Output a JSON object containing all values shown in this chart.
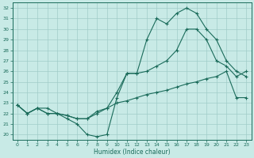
{
  "xlabel": "Humidex (Indice chaleur)",
  "bg_color": "#c8eae6",
  "grid_color": "#a0ccc8",
  "line_color": "#1a6b5a",
  "xlim": [
    -0.5,
    23.5
  ],
  "ylim": [
    19.5,
    32.5
  ],
  "yticks": [
    20,
    21,
    22,
    23,
    24,
    25,
    26,
    27,
    28,
    29,
    30,
    31,
    32
  ],
  "xticks": [
    0,
    1,
    2,
    3,
    4,
    5,
    6,
    7,
    8,
    9,
    10,
    11,
    12,
    13,
    14,
    15,
    16,
    17,
    18,
    19,
    20,
    21,
    22,
    23
  ],
  "line1_x": [
    0,
    1,
    2,
    3,
    4,
    5,
    6,
    7,
    8,
    9,
    10,
    11,
    12,
    13,
    14,
    15,
    16,
    17,
    18,
    19,
    20,
    21,
    22,
    23
  ],
  "line1_y": [
    22.8,
    22.0,
    22.5,
    22.5,
    22.0,
    21.5,
    21.0,
    20.0,
    19.8,
    20.0,
    23.5,
    25.8,
    25.8,
    29.0,
    31.0,
    30.5,
    31.5,
    32.0,
    31.5,
    30.0,
    29.0,
    27.0,
    26.0,
    25.5
  ],
  "line2_x": [
    0,
    1,
    2,
    3,
    4,
    5,
    6,
    7,
    8,
    9,
    10,
    11,
    12,
    13,
    14,
    15,
    16,
    17,
    18,
    19,
    20,
    21,
    22,
    23
  ],
  "line2_y": [
    22.8,
    22.0,
    22.5,
    22.0,
    22.0,
    21.8,
    21.5,
    21.5,
    22.0,
    22.5,
    24.0,
    25.8,
    25.8,
    26.0,
    26.5,
    27.0,
    28.0,
    30.0,
    30.0,
    29.0,
    27.0,
    26.5,
    25.5,
    26.0
  ],
  "line3_x": [
    0,
    1,
    2,
    3,
    4,
    5,
    6,
    7,
    8,
    9,
    10,
    11,
    12,
    13,
    14,
    15,
    16,
    17,
    18,
    19,
    20,
    21,
    22,
    23
  ],
  "line3_y": [
    22.8,
    22.0,
    22.5,
    22.0,
    22.0,
    21.8,
    21.5,
    21.5,
    22.2,
    22.5,
    23.0,
    23.2,
    23.5,
    23.8,
    24.0,
    24.2,
    24.5,
    24.8,
    25.0,
    25.3,
    25.5,
    26.0,
    23.5,
    23.5
  ]
}
